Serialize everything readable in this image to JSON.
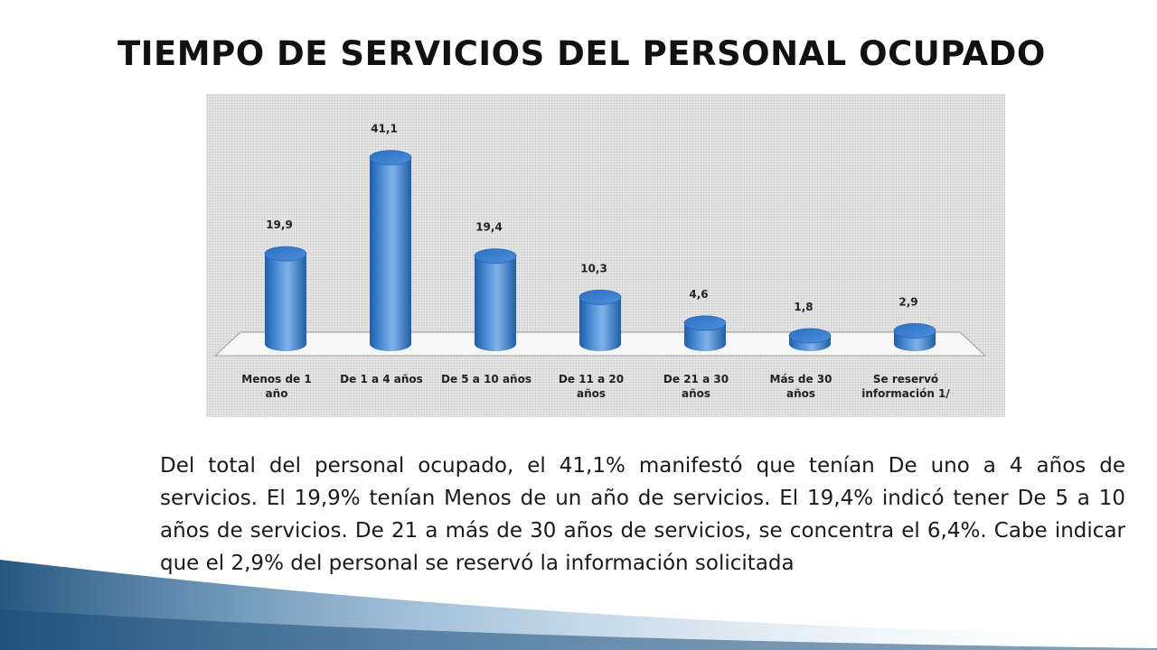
{
  "slide": {
    "title": "TIEMPO DE SERVICIOS DEL PERSONAL OCUPADO",
    "summary": "Del total del personal ocupado, el 41,1% manifestó que tenían De uno a 4 años de servicios. El 19,9% tenían Menos de un año de servicios. El 19,4% indicó tener De 5 a 10 años de servicios. De 21 a más de 30 años de servicios, se concentra el 6,4%. Cabe indicar que el 2,9% del personal se reservó la información solicitada"
  },
  "chart_data": {
    "type": "bar",
    "style": "3d-cylinder",
    "categories": [
      [
        "Menos de 1",
        "año"
      ],
      [
        "De 1 a 4 años"
      ],
      [
        "De 5 a 10 años"
      ],
      [
        "De 11 a 20",
        "años"
      ],
      [
        "De 21 a 30",
        "años"
      ],
      [
        "Más de 30",
        "años"
      ],
      [
        "Se reservó",
        "información 1/"
      ]
    ],
    "values": [
      19.9,
      41.1,
      19.4,
      10.3,
      4.6,
      1.8,
      2.9
    ],
    "value_labels": [
      "19,9",
      "41,1",
      "19,4",
      "10,3",
      "4,6",
      "1,8",
      "2,9"
    ],
    "title": "",
    "xlabel": "",
    "ylabel": "",
    "ylim": [
      0,
      45
    ],
    "grid": false,
    "legend": "none",
    "colors": {
      "bar_light": "#7fb2e8",
      "bar_mid": "#4f8fd6",
      "bar_dark": "#1f5ea8",
      "bar_top": "#3a7bd0",
      "frame_bg": "#e6e6e6",
      "floor": "#f7f7f7"
    }
  },
  "background": {
    "accent_dark": "#1b4f7a",
    "accent_light": "#9ec3dd"
  }
}
